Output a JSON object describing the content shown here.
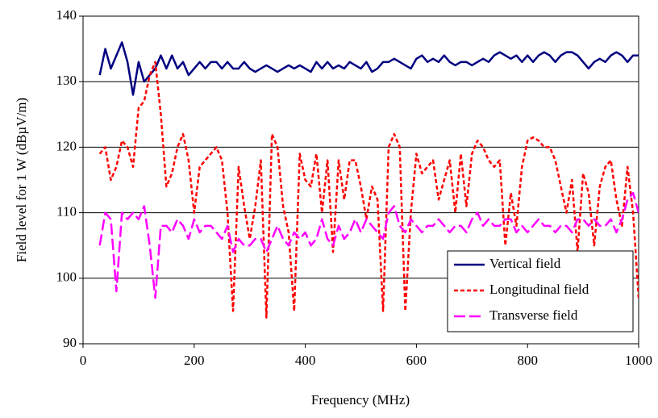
{
  "chart_data": {
    "type": "line",
    "xlabel": "Frequency (MHz)",
    "ylabel": "Field level for 1 W (dBµV/m)",
    "xlim": [
      0,
      1000
    ],
    "xticks": [
      0,
      200,
      400,
      600,
      800,
      1000
    ],
    "ylim": [
      90,
      140
    ],
    "yticks": [
      90,
      100,
      110,
      120,
      130,
      140
    ],
    "grid": true,
    "legend": "lower right",
    "x": [
      30,
      40,
      50,
      60,
      70,
      80,
      90,
      100,
      110,
      120,
      130,
      140,
      150,
      160,
      170,
      180,
      190,
      200,
      210,
      220,
      230,
      240,
      250,
      260,
      270,
      280,
      290,
      300,
      310,
      320,
      330,
      340,
      350,
      360,
      370,
      380,
      390,
      400,
      410,
      420,
      430,
      440,
      450,
      460,
      470,
      480,
      490,
      500,
      510,
      520,
      530,
      540,
      550,
      560,
      570,
      580,
      590,
      600,
      610,
      620,
      630,
      640,
      650,
      660,
      670,
      680,
      690,
      700,
      710,
      720,
      730,
      740,
      750,
      760,
      770,
      780,
      790,
      800,
      810,
      820,
      830,
      840,
      850,
      860,
      870,
      880,
      890,
      900,
      910,
      920,
      930,
      940,
      950,
      960,
      970,
      980,
      990,
      1000
    ],
    "series": [
      {
        "name": "Vertical field",
        "color": "#000080",
        "dash": "solid",
        "values": [
          131,
          135,
          132,
          134,
          136,
          133,
          128,
          133,
          130,
          131,
          132,
          134,
          132,
          134,
          132,
          133,
          131,
          132,
          133,
          132,
          133,
          133,
          132,
          133,
          132,
          132,
          133,
          132,
          131.5,
          132,
          132.5,
          132,
          131.5,
          132,
          132.5,
          132,
          132.5,
          132,
          131.5,
          133,
          132,
          133,
          132,
          132.5,
          132,
          133,
          132.5,
          132,
          133,
          131.5,
          132,
          133,
          133,
          133.5,
          133,
          132.5,
          132,
          133.5,
          134,
          133,
          133.5,
          133,
          134,
          133,
          132.5,
          133,
          133,
          132.5,
          133,
          133.5,
          133,
          134,
          134.5,
          134,
          133.5,
          134,
          133,
          134,
          133,
          134,
          134.5,
          134,
          133,
          134,
          134.5,
          134.5,
          134,
          133,
          132,
          133,
          133.5,
          133,
          134,
          134.5,
          134,
          133,
          134,
          134
        ]
      },
      {
        "name": "Longitudinal field",
        "color": "#ff0000",
        "dash": "short",
        "values": [
          119,
          120,
          115,
          117,
          121,
          120,
          117,
          126,
          127,
          131,
          133,
          125,
          114,
          116,
          120,
          122,
          118,
          110,
          117,
          118,
          119,
          120,
          118,
          110,
          95,
          117,
          111,
          106,
          111,
          118,
          94,
          122,
          120,
          111,
          107,
          95,
          119,
          115,
          114,
          119,
          110,
          118,
          104,
          118,
          112,
          118,
          118,
          114,
          109,
          114,
          112,
          95,
          120,
          122,
          120,
          95,
          110,
          119,
          116,
          117,
          118,
          112,
          115,
          118,
          110,
          119,
          111,
          119,
          121,
          120,
          118,
          117,
          118,
          105,
          113,
          108,
          117,
          121,
          121.5,
          121,
          120,
          120,
          118,
          114,
          110,
          115,
          104,
          116,
          113,
          105,
          114,
          117,
          118,
          112,
          108,
          117,
          110,
          97
        ]
      },
      {
        "name": "Transverse field",
        "color": "#ff00ff",
        "dash": "long",
        "values": [
          105,
          110,
          109,
          98,
          110,
          109,
          110,
          109,
          111,
          105,
          97,
          108,
          108,
          107,
          109,
          108,
          106,
          109,
          107,
          108,
          108,
          107,
          106,
          108,
          104,
          106,
          105,
          105,
          106,
          106,
          104,
          106,
          108,
          106,
          105,
          107,
          106,
          107,
          105,
          106,
          109,
          106,
          105,
          108,
          106,
          107,
          109,
          107,
          109,
          108,
          107,
          106,
          110,
          111,
          108,
          107,
          109,
          108,
          107,
          108,
          108,
          109,
          108,
          107,
          108,
          108,
          107,
          109,
          110,
          108,
          109,
          108,
          108,
          109,
          109,
          107,
          108,
          107,
          108,
          109,
          108,
          108,
          107,
          108,
          108,
          107,
          109,
          109,
          108,
          109,
          108,
          108,
          109,
          107,
          109,
          112,
          113,
          110
        ]
      }
    ]
  }
}
